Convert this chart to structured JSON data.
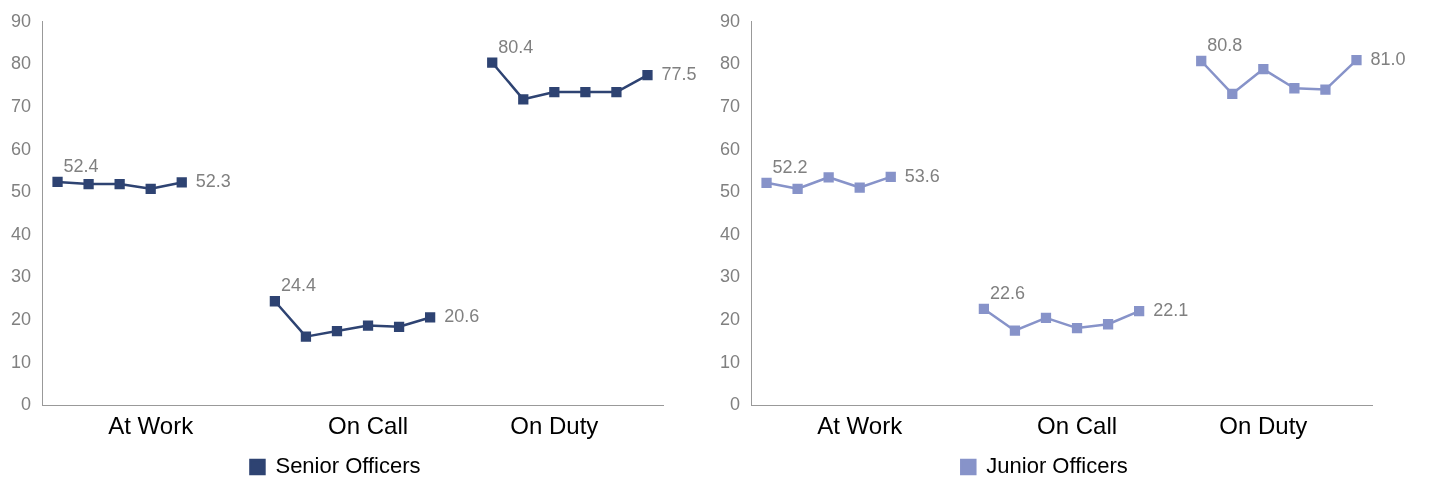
{
  "chart_data": [
    {
      "type": "line",
      "categories": [
        null,
        null,
        null,
        "At Work",
        null,
        null,
        null,
        null,
        null,
        null,
        "On Call",
        null,
        null,
        null,
        null,
        null,
        "On Duty",
        null,
        null,
        null
      ],
      "ylim": [
        0,
        90
      ],
      "yticks": [
        0,
        10,
        20,
        30,
        40,
        50,
        60,
        70,
        80,
        90
      ],
      "grid": false,
      "legend": "bottom",
      "marker": "square",
      "series": [
        {
          "name": "Senior Officers",
          "color": "#2e4372",
          "values": [
            52.4,
            51.9,
            51.9,
            50.8,
            52.3,
            null,
            null,
            24.4,
            16.1,
            17.4,
            18.7,
            18.4,
            20.6,
            null,
            80.4,
            71.8,
            73.5,
            73.5,
            73.5,
            77.5
          ],
          "value_labels": [
            "52.4",
            null,
            null,
            null,
            "52.3",
            null,
            null,
            "24.4",
            null,
            null,
            null,
            null,
            "20.6",
            null,
            "80.4",
            null,
            null,
            null,
            null,
            "77.5"
          ]
        }
      ]
    },
    {
      "type": "line",
      "categories": [
        null,
        null,
        null,
        "At Work",
        null,
        null,
        null,
        null,
        null,
        null,
        "On Call",
        null,
        null,
        null,
        null,
        null,
        "On Duty",
        null,
        null,
        null
      ],
      "ylim": [
        0,
        90
      ],
      "yticks": [
        0,
        10,
        20,
        30,
        40,
        50,
        60,
        70,
        80,
        90
      ],
      "grid": false,
      "legend": "bottom",
      "marker": "square",
      "series": [
        {
          "name": "Junior Officers",
          "color": "#8793c9",
          "values": [
            52.2,
            50.8,
            53.5,
            51.1,
            53.6,
            null,
            null,
            22.6,
            17.5,
            20.5,
            18.1,
            19.0,
            22.1,
            null,
            80.8,
            73.1,
            78.9,
            74.4,
            74.1,
            81.0
          ],
          "value_labels": [
            "52.2",
            null,
            null,
            null,
            "53.6",
            null,
            null,
            "22.6",
            null,
            null,
            null,
            null,
            "22.1",
            null,
            "80.8",
            null,
            null,
            null,
            null,
            "81.0"
          ]
        }
      ]
    }
  ]
}
